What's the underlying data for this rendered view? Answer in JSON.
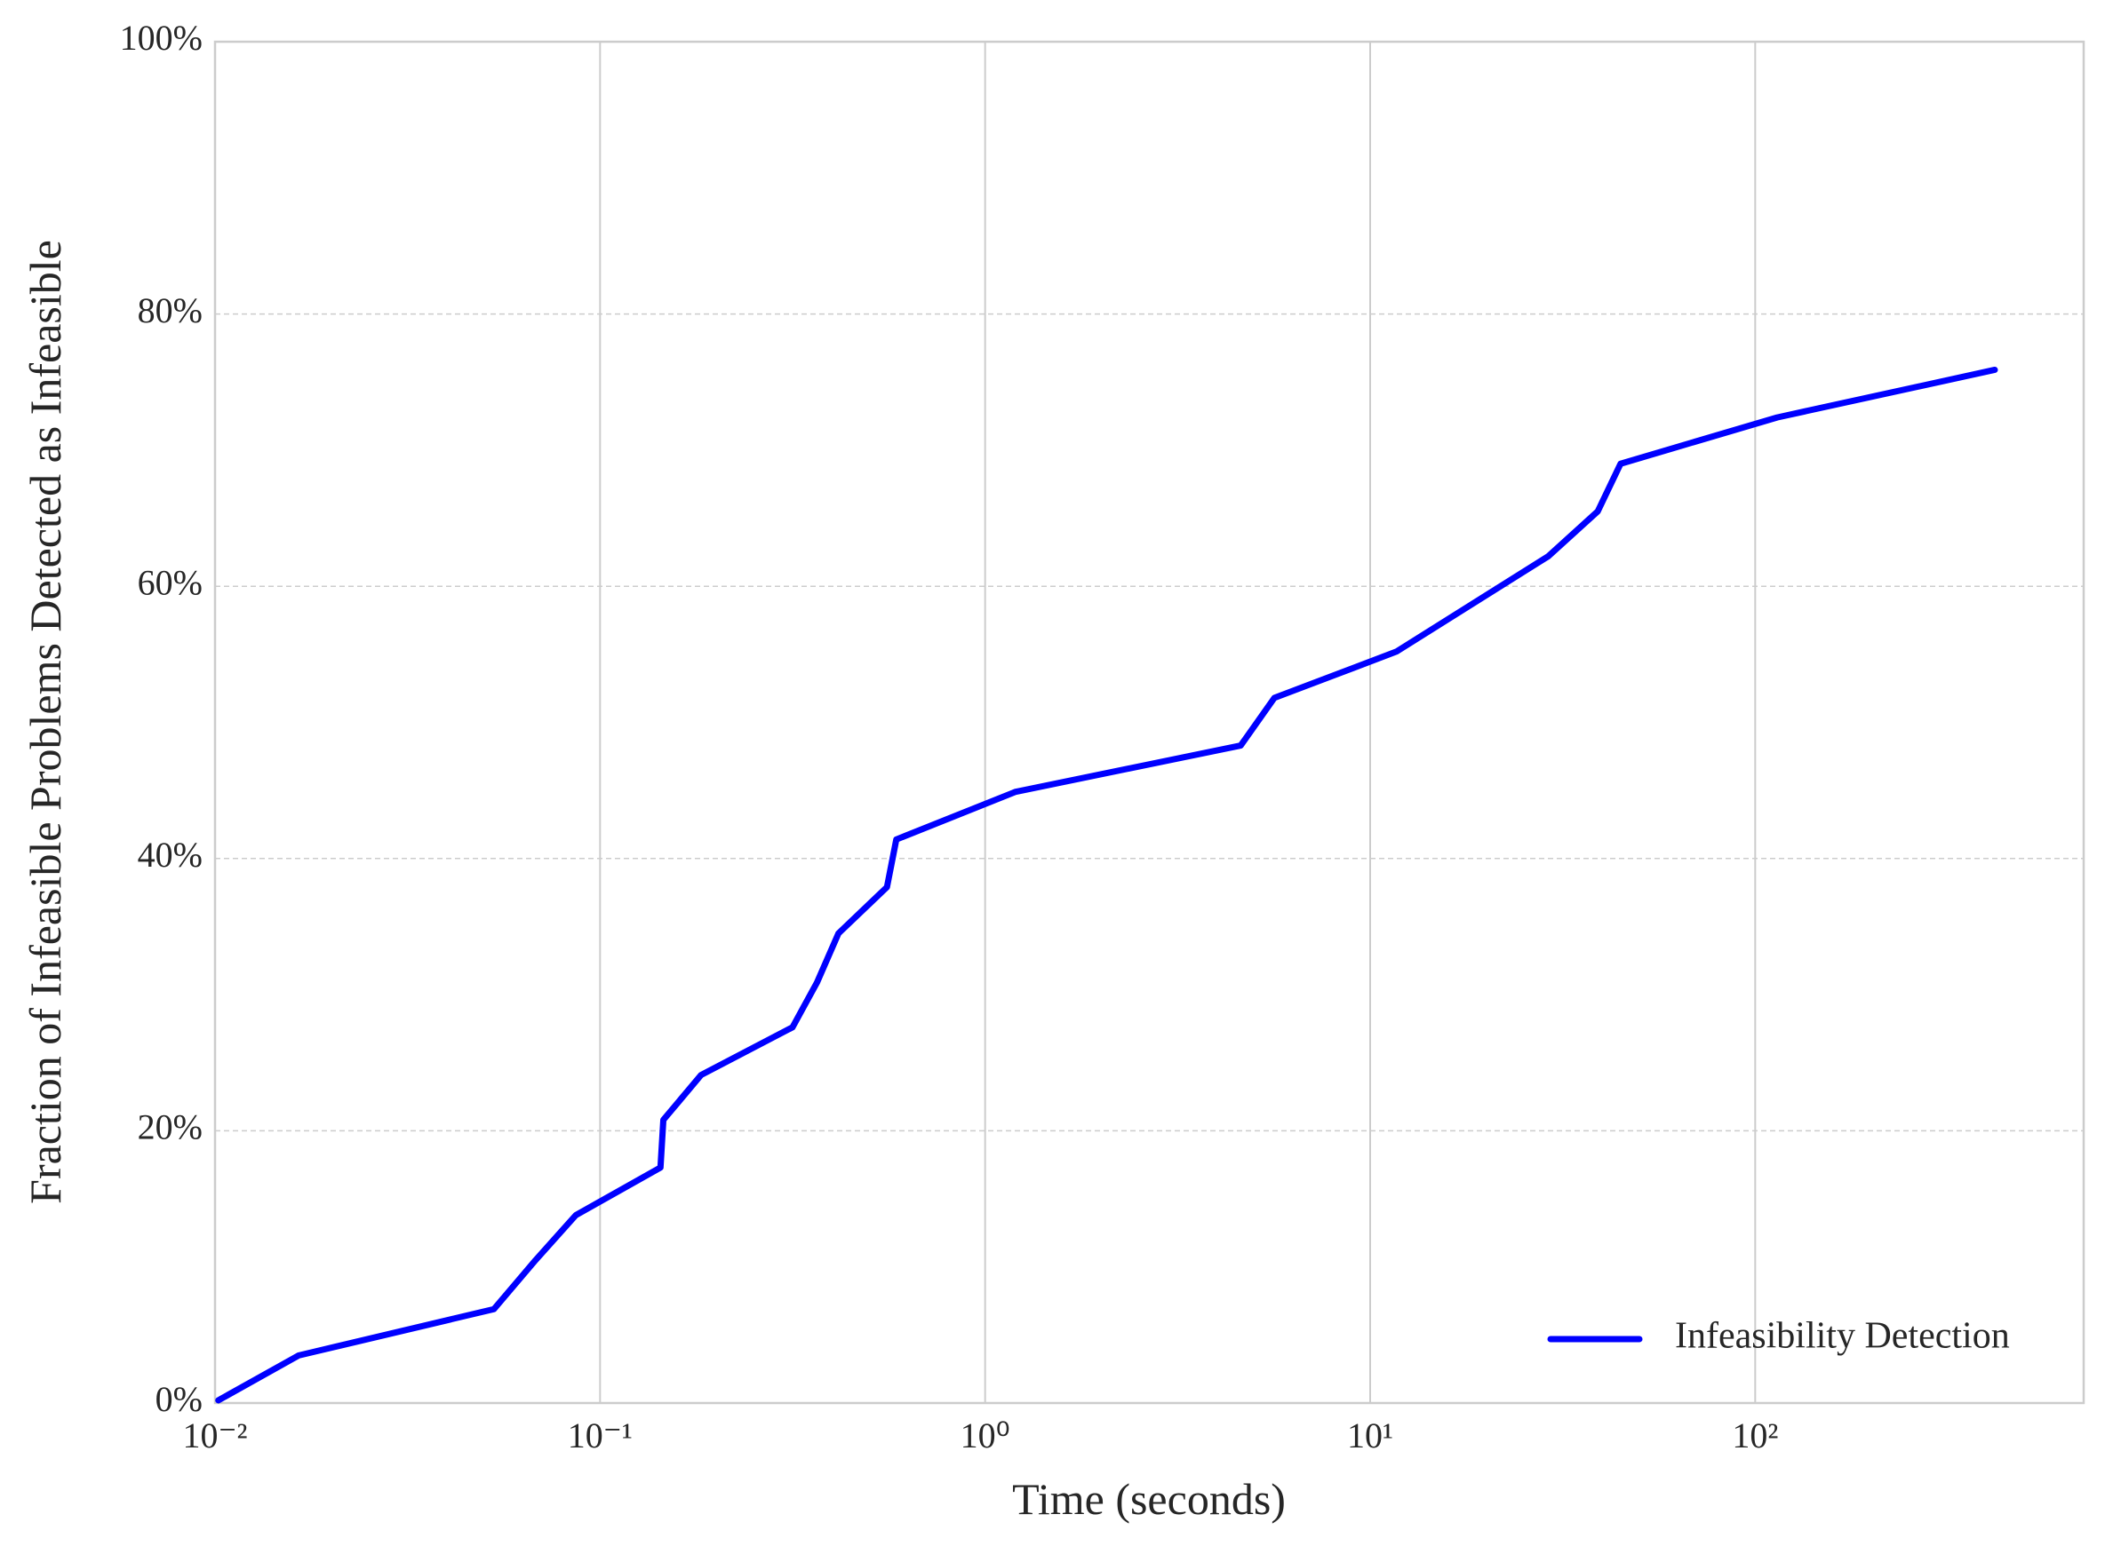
{
  "chart_data": {
    "type": "line",
    "xlabel": "Time (seconds)",
    "ylabel": "Fraction of Infeasible Problems Detected as Infeasible",
    "xscale": "log",
    "xlim": [
      0.01,
      713
    ],
    "ylim": [
      0,
      100
    ],
    "xticks": [
      {
        "value": 0.01,
        "label": "10⁻²"
      },
      {
        "value": 0.1,
        "label": "10⁻¹"
      },
      {
        "value": 1,
        "label": "10⁰"
      },
      {
        "value": 10,
        "label": "10¹"
      },
      {
        "value": 100,
        "label": "10²"
      }
    ],
    "yticks": [
      {
        "value": 0,
        "label": "0%"
      },
      {
        "value": 20,
        "label": "20%"
      },
      {
        "value": 40,
        "label": "40%"
      },
      {
        "value": 60,
        "label": "60%"
      },
      {
        "value": 80,
        "label": "80%"
      },
      {
        "value": 100,
        "label": "100%"
      }
    ],
    "grid": true,
    "legend_position": "lower right",
    "series": [
      {
        "name": "Infeasibility Detection",
        "color": "#0000ff",
        "x": [
          0.0102,
          0.0165,
          0.053,
          0.068,
          0.0865,
          0.1435,
          0.146,
          0.183,
          0.316,
          0.366,
          0.416,
          0.556,
          0.588,
          1.2,
          4.61,
          5.64,
          11.7,
          29.0,
          39.0,
          44.7,
          114,
          419
        ],
        "values": [
          0.2,
          3.5,
          6.9,
          10.5,
          13.8,
          17.3,
          20.8,
          24.1,
          27.6,
          30.9,
          34.5,
          37.9,
          41.4,
          44.9,
          48.3,
          51.8,
          55.2,
          62.2,
          65.5,
          69.0,
          72.4,
          75.9
        ]
      }
    ]
  }
}
